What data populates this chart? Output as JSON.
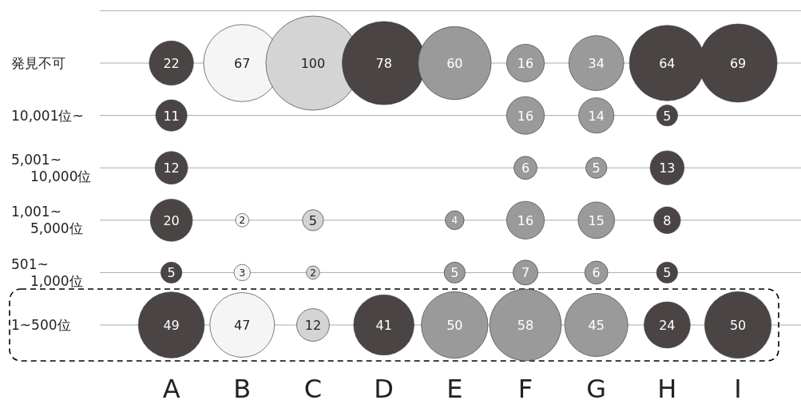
{
  "chart_data": {
    "type": "heatmap",
    "categories": [
      "A",
      "B",
      "C",
      "D",
      "E",
      "F",
      "G",
      "H",
      "I"
    ],
    "y_categories": [
      "発見不可",
      "10,001位~",
      "5,001~\n10,000位",
      "1,001~\n5,000位",
      "501~\n1,000位",
      "1~500位"
    ],
    "colors": [
      "#4a4544",
      "#f5f5f5",
      "#d4d4d4",
      "#4a4544",
      "#9a9a9a",
      "#9a9a9a",
      "#9a9a9a",
      "#4a4544",
      "#4a4544"
    ],
    "grid": "y",
    "data_labels": true,
    "cells": [
      [
        22,
        67,
        100,
        78,
        60,
        16,
        34,
        64,
        69
      ],
      [
        11,
        null,
        null,
        null,
        null,
        16,
        14,
        5,
        null
      ],
      [
        12,
        null,
        null,
        null,
        null,
        6,
        5,
        13,
        null
      ],
      [
        20,
        2,
        5,
        null,
        4,
        16,
        15,
        8,
        null
      ],
      [
        5,
        3,
        2,
        null,
        5,
        7,
        6,
        5,
        null
      ],
      [
        49,
        47,
        12,
        41,
        50,
        58,
        45,
        24,
        50
      ]
    ]
  }
}
